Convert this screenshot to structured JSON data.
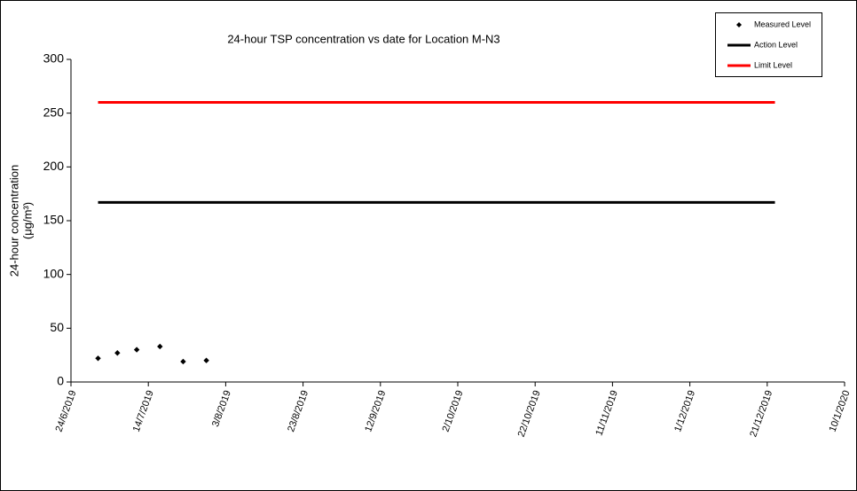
{
  "chart_data": {
    "type": "scatter",
    "title": "24-hour TSP concentration vs date for Location M-N3",
    "y_label": [
      "24-hour concentration",
      "(μg/m³)"
    ],
    "xlim": [
      "24/6/2019",
      "10/1/2020"
    ],
    "xticks": [
      "24/6/2019",
      "14/7/2019",
      "3/8/2019",
      "23/8/2019",
      "12/9/2019",
      "2/10/2019",
      "22/10/2019",
      "11/11/2019",
      "1/12/2019",
      "21/12/2019",
      "10/1/2020"
    ],
    "ylim": [
      0,
      300
    ],
    "yticks": [
      0,
      50,
      100,
      150,
      200,
      250,
      300
    ],
    "grid": false,
    "legend": "top-right",
    "series": [
      {
        "name": "Measured Level",
        "color": "#000000",
        "style": "marker",
        "x": [
          "1/7/2019",
          "6/7/2019",
          "11/7/2019",
          "17/7/2019",
          "23/7/2019",
          "29/7/2019"
        ],
        "values": [
          22,
          27,
          30,
          33,
          19,
          20
        ]
      },
      {
        "name": "Action Level",
        "color": "#000000",
        "style": "line",
        "x": [
          "1/7/2019",
          "23/12/2019"
        ],
        "values": [
          167,
          167
        ]
      },
      {
        "name": "Limit Level",
        "color": "#ff0000",
        "style": "line",
        "x": [
          "1/7/2019",
          "23/12/2019"
        ],
        "values": [
          260,
          260
        ]
      }
    ]
  }
}
